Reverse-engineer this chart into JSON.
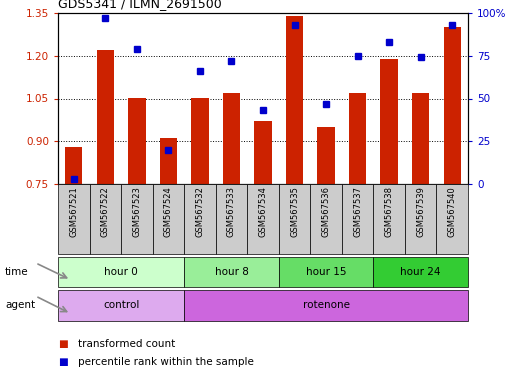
{
  "title": "GDS5341 / ILMN_2691500",
  "samples": [
    "GSM567521",
    "GSM567522",
    "GSM567523",
    "GSM567524",
    "GSM567532",
    "GSM567533",
    "GSM567534",
    "GSM567535",
    "GSM567536",
    "GSM567537",
    "GSM567538",
    "GSM567539",
    "GSM567540"
  ],
  "transformed_count": [
    0.88,
    1.22,
    1.05,
    0.91,
    1.05,
    1.07,
    0.97,
    1.34,
    0.95,
    1.07,
    1.19,
    1.07,
    1.3
  ],
  "percentile_rank": [
    3,
    97,
    79,
    20,
    66,
    72,
    43,
    93,
    47,
    75,
    83,
    74,
    93
  ],
  "ylim_left": [
    0.75,
    1.35
  ],
  "ylim_right": [
    0,
    100
  ],
  "yticks_left": [
    0.75,
    0.9,
    1.05,
    1.2,
    1.35
  ],
  "yticks_right": [
    0,
    25,
    50,
    75,
    100
  ],
  "bar_color": "#cc2200",
  "dot_color": "#0000cc",
  "bar_bottom": 0.75,
  "time_groups": [
    {
      "label": "hour 0",
      "start": 0,
      "end": 4,
      "color": "#ccffcc"
    },
    {
      "label": "hour 8",
      "start": 4,
      "end": 7,
      "color": "#99ee99"
    },
    {
      "label": "hour 15",
      "start": 7,
      "end": 10,
      "color": "#66dd66"
    },
    {
      "label": "hour 24",
      "start": 10,
      "end": 13,
      "color": "#33cc33"
    }
  ],
  "agent_groups": [
    {
      "label": "control",
      "start": 0,
      "end": 4,
      "color": "#ddaaee"
    },
    {
      "label": "rotenone",
      "start": 4,
      "end": 13,
      "color": "#cc66dd"
    }
  ],
  "bg_color": "#ffffff",
  "tick_label_color_left": "#cc2200",
  "tick_label_color_right": "#0000cc",
  "xlabel_bg": "#cccccc"
}
